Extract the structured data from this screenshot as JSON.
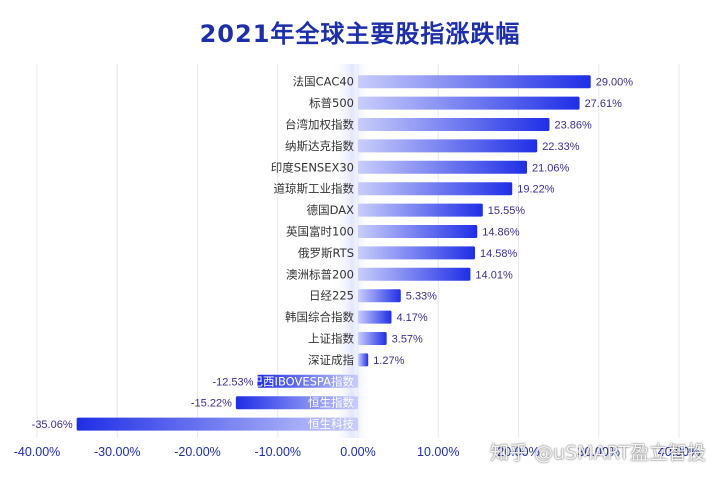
{
  "chart_data": {
    "type": "bar",
    "orientation": "horizontal",
    "title": "2021年全球主要股指涨跌幅",
    "categories": [
      "法国CAC40",
      "标普500",
      "台湾加权指数",
      "纳斯达克指数",
      "印度SENSEX30",
      "道琼斯工业指数",
      "德国DAX",
      "英国富时100",
      "俄罗斯RTS",
      "澳洲标普200",
      "日经225",
      "韩国综合指数",
      "上证指数",
      "深证成指",
      "巴西IBOVESPA指数",
      "恒生指数",
      "恒生科技"
    ],
    "values": [
      29.0,
      27.61,
      23.86,
      22.33,
      21.06,
      19.22,
      15.55,
      14.86,
      14.58,
      14.01,
      5.33,
      4.17,
      3.57,
      1.27,
      -12.53,
      -15.22,
      -35.06
    ],
    "value_labels": [
      "29.00%",
      "27.61%",
      "23.86%",
      "22.33%",
      "21.06%",
      "19.22%",
      "15.55%",
      "14.86%",
      "14.58%",
      "14.01%",
      "5.33%",
      "4.17%",
      "3.57%",
      "1.27%",
      "-12.53%",
      "-15.22%",
      "-35.06%"
    ],
    "xlim": [
      -40,
      40
    ],
    "xticks": [
      -40,
      -30,
      -20,
      -10,
      0,
      10,
      20,
      30,
      40
    ],
    "xtick_labels": [
      "-40.00%",
      "-30.00%",
      "-20.00%",
      "-10.00%",
      "0.00%",
      "10.00%",
      "20.00%",
      "30.00%",
      "40.00%"
    ],
    "grid": true,
    "xlabel": "",
    "ylabel": "",
    "colors": {
      "bar_dark": "#1f2ee6",
      "bar_light": "#c9cdfb",
      "title": "#1c2fa8",
      "value_label": "#3a2f8c",
      "axis_text": "#1c2fa8",
      "category_text": "#333333",
      "zero_band": "#e8ebfb"
    }
  },
  "watermark": "知乎 @uSMART盈立智投"
}
